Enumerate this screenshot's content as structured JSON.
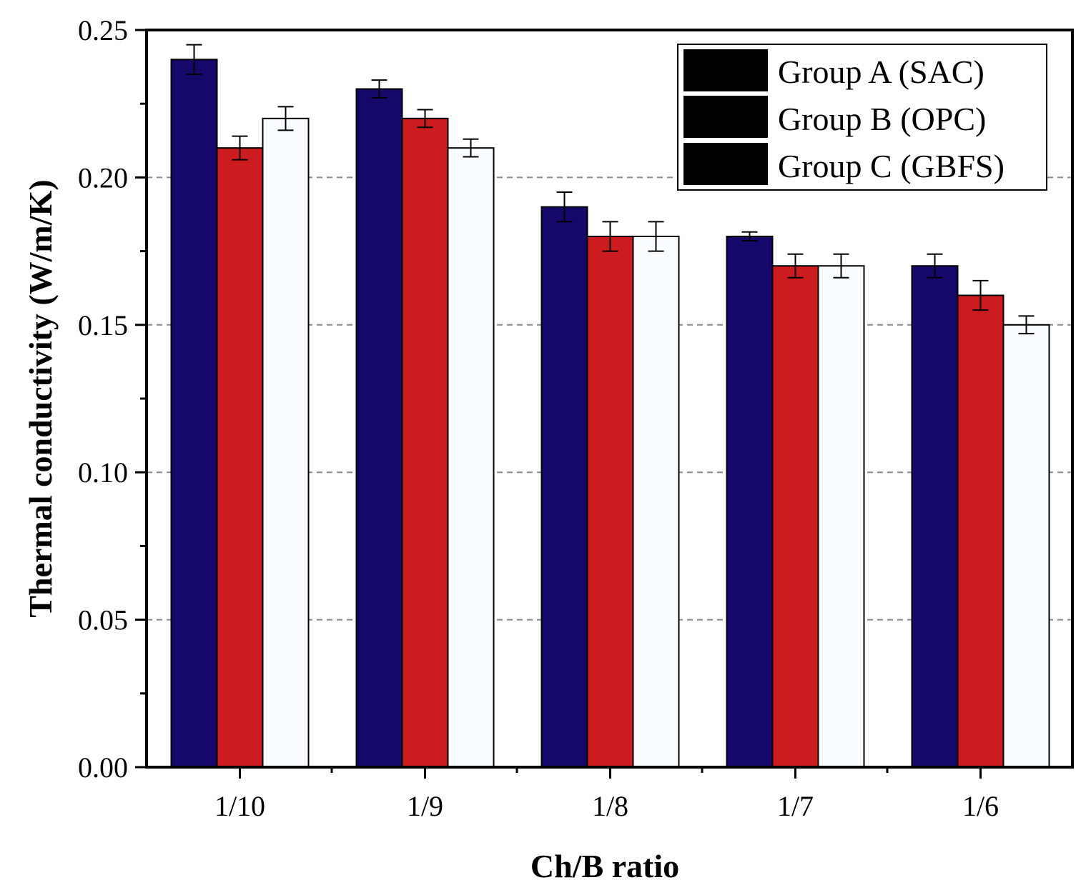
{
  "chart_data": {
    "type": "bar",
    "title": "",
    "xlabel": "Ch/B ratio",
    "ylabel": "Thermal conductivity (W/m/K)",
    "ylim": [
      0,
      0.25
    ],
    "yticks": [
      "0.00",
      "0.05",
      "0.10",
      "0.15",
      "0.20",
      "0.25"
    ],
    "ytick_values": [
      0,
      0.05,
      0.1,
      0.15,
      0.2,
      0.25
    ],
    "grid": "horizontal dashed at major ticks",
    "legend_position": "top-right",
    "categories": [
      "1/10",
      "1/9",
      "1/8",
      "1/7",
      "1/6"
    ],
    "series": [
      {
        "name": "Group A (SAC)",
        "color": "#14096b",
        "values": [
          0.24,
          0.23,
          0.19,
          0.18,
          0.17
        ],
        "errors": [
          0.005,
          0.003,
          0.005,
          0.0015,
          0.004
        ]
      },
      {
        "name": "Group B (OPC)",
        "color": "#cc1c1f",
        "values": [
          0.21,
          0.22,
          0.18,
          0.17,
          0.16
        ],
        "errors": [
          0.004,
          0.003,
          0.005,
          0.004,
          0.005
        ]
      },
      {
        "name": "Group C (GBFS)",
        "color": "#fafdff",
        "values": [
          0.22,
          0.21,
          0.18,
          0.17,
          0.15
        ],
        "errors": [
          0.004,
          0.003,
          0.005,
          0.004,
          0.003
        ]
      }
    ]
  }
}
